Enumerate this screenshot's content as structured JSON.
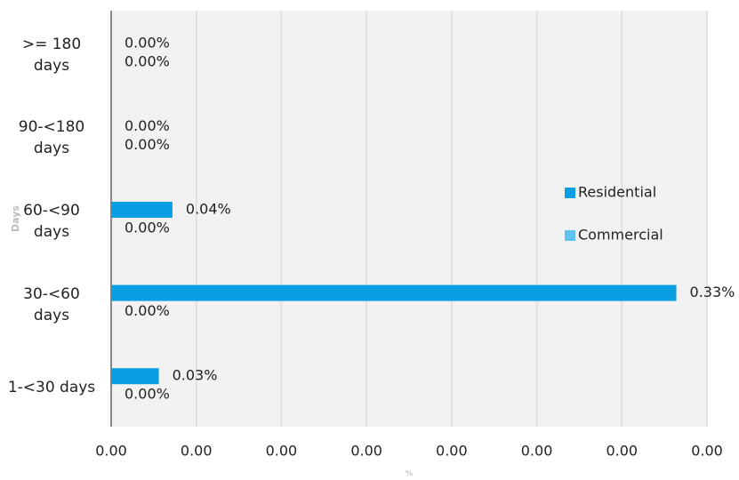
{
  "chart_data": {
    "type": "hbar",
    "categories": [
      ">= 180 days",
      "90-<180 days",
      "60-<90 days",
      "30-<60 days",
      "1-<30 days"
    ],
    "series": [
      {
        "name": "Residential",
        "color": "#0a9ee2",
        "values": [
          0,
          0,
          0.00036,
          0.00332,
          0.00028
        ],
        "value_labels": [
          "0.00%",
          "0.00%",
          "0.04%",
          "0.33%",
          "0.03%"
        ]
      },
      {
        "name": "Commercial",
        "color": "#5ec4ef",
        "values": [
          0,
          0,
          0,
          0,
          0
        ],
        "value_labels": [
          "0.00%",
          "0.00%",
          "0.00%",
          "0.00%",
          "0.00%"
        ]
      }
    ],
    "xlim": [
      0,
      0.0035
    ],
    "xticks": [
      {
        "value": 0,
        "label": "0.00"
      },
      {
        "value": 0.0005,
        "label": "0.00"
      },
      {
        "value": 0.001,
        "label": "0.00"
      },
      {
        "value": 0.0015,
        "label": "0.00"
      },
      {
        "value": 0.002,
        "label": "0.00"
      },
      {
        "value": 0.0025,
        "label": "0.00"
      },
      {
        "value": 0.003,
        "label": "0.00"
      },
      {
        "value": 0.0035,
        "label": "0.00"
      }
    ],
    "x_label": "%",
    "y_label": "Days",
    "grid": true,
    "legend": "right"
  }
}
